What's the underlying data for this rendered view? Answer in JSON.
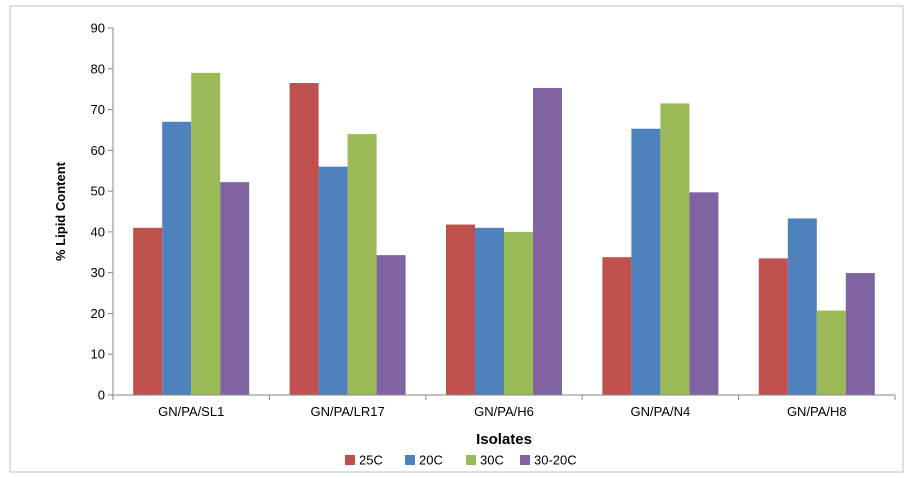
{
  "chart_data": {
    "type": "bar",
    "title": "",
    "xlabel": "Isolates",
    "ylabel": "% Lipid Content",
    "ylim": [
      0,
      90
    ],
    "yticks": [
      "0",
      "10",
      "20",
      "30",
      "40",
      "50",
      "60",
      "70",
      "80",
      "90"
    ],
    "grid": false,
    "legend_position": "bottom",
    "categories": [
      "GN/PA/SL1",
      "GN/PA/LR17",
      "GN/PA/H6",
      "GN/PA/N4",
      "GN/PA/H8"
    ],
    "series": [
      {
        "name": "25C",
        "color": "#c0504d",
        "values": [
          41,
          76.5,
          41.8,
          33.8,
          33.5
        ]
      },
      {
        "name": "20C",
        "color": "#4f81bd",
        "values": [
          67,
          56,
          41,
          65.3,
          43.3
        ]
      },
      {
        "name": "30C",
        "color": "#9bbb59",
        "values": [
          79,
          64,
          40,
          71.5,
          20.7
        ]
      },
      {
        "name": "30-20C",
        "color": "#8064a2",
        "values": [
          52.2,
          34.3,
          75.3,
          49.7,
          29.9
        ]
      }
    ]
  }
}
